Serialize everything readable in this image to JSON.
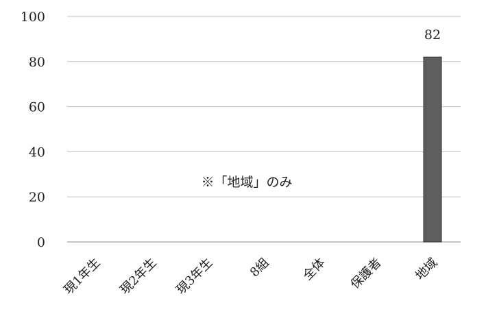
{
  "chart_data": {
    "type": "bar",
    "categories": [
      "現1年生",
      "現2年生",
      "現3年生",
      "8組",
      "全体",
      "保護者",
      "地域"
    ],
    "values": [
      null,
      null,
      null,
      null,
      null,
      null,
      82
    ],
    "data_labels": [
      "",
      "",
      "",
      "",
      "",
      "",
      "82"
    ],
    "ylim": [
      0,
      100
    ],
    "yticks": [
      0,
      20,
      40,
      60,
      80,
      100
    ],
    "grid": true,
    "legend": "none",
    "annotation": "※「地域」のみ",
    "colors": {
      "bar": "#5e5e5e",
      "bar_edge": "#2a2a2a",
      "grid": "#bdbdbd",
      "axis": "#8a8a8a",
      "text": "#222222"
    }
  }
}
